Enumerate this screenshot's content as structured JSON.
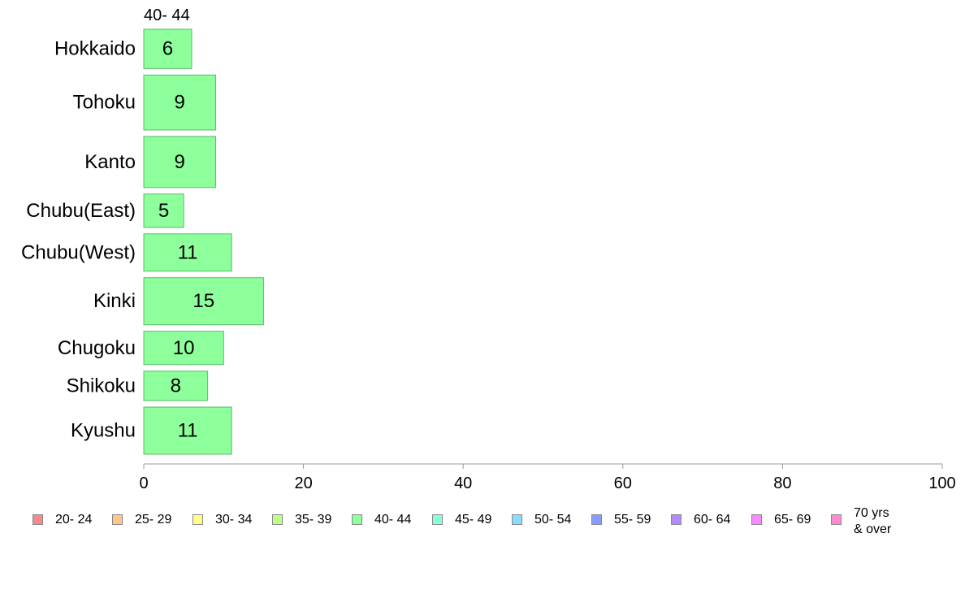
{
  "chart_data": {
    "type": "bar",
    "orientation": "horizontal",
    "series_label": "40- 44",
    "categories": [
      "Hokkaido",
      "Tohoku",
      "Kanto",
      "Chubu(East)",
      "Chubu(West)",
      "Kinki",
      "Chugoku",
      "Shikoku",
      "Kyushu"
    ],
    "values": [
      6,
      9,
      9,
      5,
      11,
      15,
      10,
      8,
      11
    ],
    "bar_thickness_relative": [
      1,
      1.4,
      1.3,
      0.85,
      0.95,
      1.2,
      0.85,
      0.75,
      1.2
    ],
    "xlim": [
      0,
      100
    ],
    "xticks": [
      0,
      20,
      40,
      60,
      80,
      100
    ],
    "bar_color": "#8dff9b",
    "bar_edge_color": "#5cb86a",
    "legend": {
      "placement": "bottom",
      "entries": [
        {
          "label": "20- 24",
          "color": "#f28b8b"
        },
        {
          "label": "25- 29",
          "color": "#ffc68a"
        },
        {
          "label": "30- 34",
          "color": "#ffff8a"
        },
        {
          "label": "35- 39",
          "color": "#bbff8a"
        },
        {
          "label": "40- 44",
          "color": "#8dff9b"
        },
        {
          "label": "45- 49",
          "color": "#8affd6"
        },
        {
          "label": "50- 54",
          "color": "#8adcff"
        },
        {
          "label": "55- 59",
          "color": "#8a9cff"
        },
        {
          "label": "60- 64",
          "color": "#b48aff"
        },
        {
          "label": "65- 69",
          "color": "#f88aff"
        },
        {
          "label": "70 yrs\n& over",
          "color": "#ff8ad2"
        }
      ]
    }
  }
}
